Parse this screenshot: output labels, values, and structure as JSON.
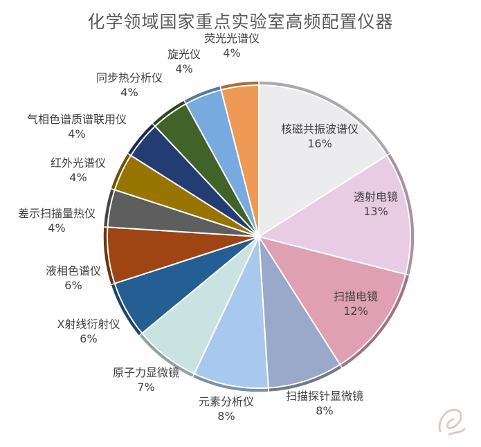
{
  "chart_data": {
    "type": "pie",
    "title": "化学领域国家重点实验室高频配置仪器",
    "slices": [
      {
        "label": "核磁共振波谱仪",
        "value": 16,
        "value_label": "16%",
        "color": "#ecebee"
      },
      {
        "label": "透射电镜",
        "value": 13,
        "value_label": "13%",
        "color": "#e8cce3"
      },
      {
        "label": "扫描电镜",
        "value": 12,
        "value_label": "12%",
        "color": "#dfa0b3"
      },
      {
        "label": "扫描探针显微镜",
        "value": 8,
        "value_label": "8%",
        "color": "#9aa9c9"
      },
      {
        "label": "元素分析仪",
        "value": 8,
        "value_label": "8%",
        "color": "#a9c8ed"
      },
      {
        "label": "原子力显微镜",
        "value": 7,
        "value_label": "7%",
        "color": "#c9e3e3"
      },
      {
        "label": "X射线衍射仪",
        "value": 6,
        "value_label": "6%",
        "color": "#245e93"
      },
      {
        "label": "液相色谱仪",
        "value": 6,
        "value_label": "6%",
        "color": "#9e4513"
      },
      {
        "label": "差示扫描量热仪",
        "value": 4,
        "value_label": "4%",
        "color": "#5e5e5e"
      },
      {
        "label": "红外光谱仪",
        "value": 4,
        "value_label": "4%",
        "color": "#987400"
      },
      {
        "label": "气相色谱质谱联用仪",
        "value": 4,
        "value_label": "4%",
        "color": "#233d72"
      },
      {
        "label": "同步热分析仪",
        "value": 4,
        "value_label": "4%",
        "color": "#416329"
      },
      {
        "label": "旋光仪",
        "value": 4,
        "value_label": "4%",
        "color": "#78aadf"
      },
      {
        "label": "荧光光谱仪",
        "value": 4,
        "value_label": "4%",
        "color": "#ef9956"
      }
    ],
    "legend": "none",
    "label_placement": "mixed"
  }
}
